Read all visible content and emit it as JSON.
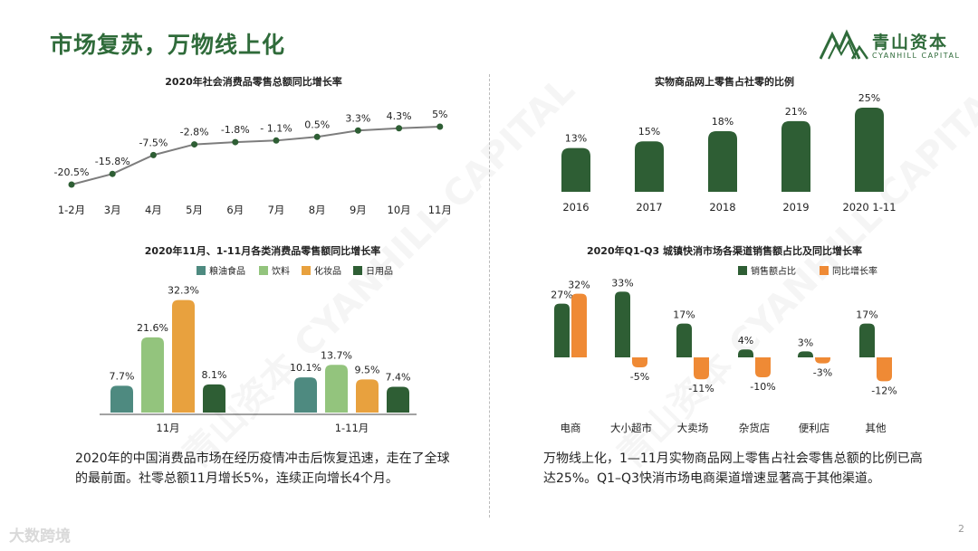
{
  "page": {
    "title": "市场复苏，万物线上化",
    "page_number": "2",
    "logo_cn": "青山资本",
    "logo_en": "CYANHILL CAPITAL",
    "bottom_logo": "大数跨境",
    "watermark": "青山资本 CYANHILL CAPITAL",
    "paragraph_left": "2020年的中国消费品市场在经历疫情冲击后恢复迅速，走在了全球的最前面。社零总额11月增长5%，连续正向增长4个月。",
    "paragraph_right": "万物线上化，1—11月实物商品网上零售占社会零售总额的比例已高达25%。Q1–Q3快消市场电商渠道增速显著高于其他渠道。"
  },
  "colors": {
    "primary_green": "#2f6b3a",
    "dark_green": "#2e5e34",
    "teal": "#4e8a80",
    "light_green": "#93c47d",
    "orange": "#e8a13e",
    "bright_orange": "#ef8a35"
  },
  "chart_data": [
    {
      "id": "retail-growth",
      "type": "line",
      "title": "2020年社会消费品零售总额同比增长率",
      "categories": [
        "1-2月",
        "3月",
        "4月",
        "5月",
        "6月",
        "7月",
        "8月",
        "9月",
        "10月",
        "11月"
      ],
      "values": [
        -20.5,
        -15.8,
        -7.5,
        -2.8,
        -1.8,
        -1.1,
        0.5,
        3.3,
        4.3,
        5
      ],
      "labels": [
        "-20.5%",
        "-15.8%",
        "-7.5%",
        "-2.8%",
        "-1.8%",
        "- 1.1%",
        "0.5%",
        "3.3%",
        "4.3%",
        "5%"
      ]
    },
    {
      "id": "online-share",
      "type": "bar",
      "title": "实物商品网上零售占社零的比例",
      "categories": [
        "2016",
        "2017",
        "2018",
        "2019",
        "2020 1-11"
      ],
      "values": [
        13,
        15,
        18,
        21,
        25
      ],
      "labels": [
        "13%",
        "15%",
        "18%",
        "21%",
        "25%"
      ]
    },
    {
      "id": "category-growth",
      "type": "bar",
      "title": "2020年11月、1-11月各类消费品零售额同比增长率",
      "categories": [
        "11月",
        "1-11月"
      ],
      "series": [
        {
          "name": "粮油食品",
          "values": [
            7.7,
            10.1
          ],
          "labels": [
            "7.7%",
            "10.1%"
          ]
        },
        {
          "name": "饮料",
          "values": [
            21.6,
            13.7
          ],
          "labels": [
            "21.6%",
            "13.7%"
          ]
        },
        {
          "name": "化妆品",
          "values": [
            32.3,
            9.5
          ],
          "labels": [
            "32.3%",
            "9.5%"
          ]
        },
        {
          "name": "日用品",
          "values": [
            8.1,
            7.4
          ],
          "labels": [
            "8.1%",
            "7.4%"
          ]
        }
      ]
    },
    {
      "id": "channel-share",
      "type": "bar",
      "title": "2020年Q1-Q3 城镇快消市场各渠道销售额占比及同比增长率",
      "categories": [
        "电商",
        "大小超市",
        "大卖场",
        "杂货店",
        "便利店",
        "其他"
      ],
      "series": [
        {
          "name": "销售额占比",
          "values": [
            27,
            33,
            17,
            4,
            3,
            17
          ],
          "labels": [
            "27%",
            "33%",
            "17%",
            "4%",
            "3%",
            "17%"
          ]
        },
        {
          "name": "同比增长率",
          "values": [
            32,
            -5,
            -11,
            -10,
            -3,
            -12
          ],
          "labels": [
            "32%",
            "-5%",
            "-11%",
            "-10%",
            "-3%",
            "-12%"
          ]
        }
      ]
    }
  ]
}
